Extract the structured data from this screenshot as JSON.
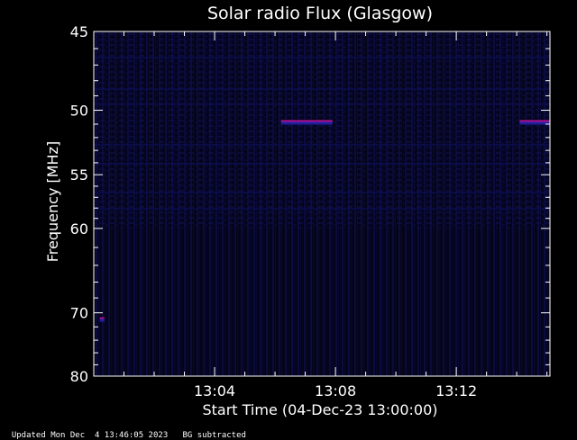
{
  "chart_data": {
    "type": "heatmap",
    "title": "Solar radio Flux (Glasgow)",
    "xlabel": "Start Time (04-Dec-23 13:00:00)",
    "ylabel": "Frequency [MHz]",
    "x_unit": "minutes after 13:00",
    "xlim": [
      0,
      15.1
    ],
    "ylim": [
      80,
      45
    ],
    "y_scale": "reciprocal",
    "x_ticks": [
      {
        "value": 4,
        "label": "13:04"
      },
      {
        "value": 8,
        "label": "13:08"
      },
      {
        "value": 12,
        "label": "13:12"
      }
    ],
    "y_ticks": [
      {
        "value": 45,
        "label": "45"
      },
      {
        "value": 50,
        "label": "50"
      },
      {
        "value": 55,
        "label": "55"
      },
      {
        "value": 60,
        "label": "60"
      },
      {
        "value": 70,
        "label": "70"
      },
      {
        "value": 80,
        "label": "80"
      }
    ],
    "features": [
      {
        "x_start": 6.2,
        "x_end": 7.9,
        "freq": 50.9,
        "intensity": "high"
      },
      {
        "x_start": 14.1,
        "x_end": 15.1,
        "freq": 50.9,
        "intensity": "high"
      },
      {
        "x_start": 0.2,
        "x_end": 0.35,
        "freq": 71,
        "intensity": "high"
      }
    ],
    "grid": false,
    "colors": {
      "background": "#000000",
      "low": "#0a0a32",
      "high": "#b0108e",
      "axes": "#ffffff"
    }
  },
  "footer": {
    "updated": "Updated Mon Dec  4 13:46:05 2023",
    "note": "BG subtracted"
  }
}
